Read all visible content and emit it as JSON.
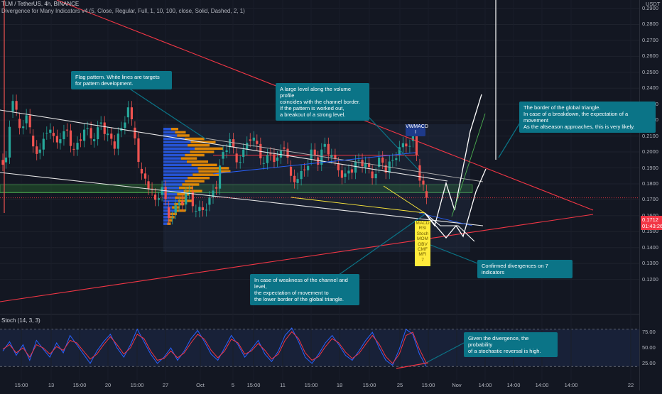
{
  "header": {
    "symbol_line": "TLM / TetherUS, 4h, BINANCE",
    "indicator_line": "Divergence for Many Indicators v4 (5, Close, Regular, Full, 1, 10, 100, close, Solid, Dashed, 2, 1)",
    "stoch_line": "Stoch (14, 3, 3)"
  },
  "currency": "USDT",
  "price": {
    "value": "0.1712",
    "timer": "01:43:26"
  },
  "notes": {
    "flag": "Flag pattern. White lines are targets\nfor pattern development.",
    "volume": "A large level along the volume profile\ncoincides with the channel border.\nIf the pattern is worked out,\na breakout of a strong level.",
    "global": "The border of the global triangle.\nIn case of a breakdown, the expectation of a movement\nAs the altseason approaches, this is very likely.",
    "weakness": "In case of weakness of the channel and level,\nthe expectation of movement to\nthe lower border of the global triangle.",
    "divergences": "Confirmed divergences on 7 indicators",
    "stoch": "Given the divergence, the probability\nof a stochastic reversal is high."
  },
  "div_labels": [
    "MACD",
    "RSI",
    "Stoch",
    "MOM",
    "OBV",
    "CMF",
    "MFI",
    "7"
  ],
  "vwmacd_label": "VWMACD",
  "vwmacd_sub": "I",
  "chart_data": [
    {
      "type": "candlestick",
      "title": "TLM / TetherUS, 4h, BINANCE",
      "y_axis_ticks": [
        "0.2900",
        "0.2800",
        "0.2700",
        "0.2600",
        "0.2500",
        "0.2400",
        "0.2300",
        "0.2200",
        "0.2100",
        "0.2000",
        "0.1900",
        "0.1800",
        "0.1700",
        "0.1600",
        "0.1500",
        "0.1400",
        "0.1300",
        "0.1200"
      ],
      "x_axis_ticks": [
        "15:00",
        "13",
        "15:00",
        "20",
        "15:00",
        "27",
        "Oct",
        "5",
        "15:00",
        "11",
        "15:00",
        "18",
        "15:00",
        "25",
        "15:00",
        "Nov",
        "14:00",
        "14:00",
        "14:00",
        "14:00",
        "22"
      ],
      "last_price": 0.1712,
      "close_path": [
        0.195,
        0.235,
        0.215,
        0.22,
        0.205,
        0.2,
        0.215,
        0.21,
        0.205,
        0.215,
        0.2,
        0.21,
        0.215,
        0.205,
        0.22,
        0.21,
        0.205,
        0.215,
        0.225,
        0.21,
        0.185,
        0.18,
        0.17,
        0.175,
        0.16,
        0.165,
        0.17,
        0.175,
        0.16,
        0.165,
        0.17,
        0.18,
        0.2,
        0.205,
        0.195,
        0.2,
        0.21,
        0.205,
        0.19,
        0.2,
        0.195,
        0.205,
        0.185,
        0.18,
        0.19,
        0.2,
        0.195,
        0.205,
        0.195,
        0.19,
        0.185,
        0.19,
        0.195,
        0.19,
        0.185,
        0.195,
        0.19,
        0.195,
        0.2,
        0.205,
        0.21,
        0.185,
        0.1712
      ],
      "levels": {
        "support_zone": [
          0.1745,
          0.1795
        ],
        "resistance_level": 0.198
      },
      "grid": true
    },
    {
      "type": "line",
      "title": "Stoch (14, 3, 3)",
      "y_axis_ticks": [
        "75.00",
        "50.00",
        "25.00"
      ],
      "ylim": [
        10,
        90
      ],
      "series": [
        {
          "color": "#2962ff",
          "values": [
            45,
            60,
            38,
            55,
            30,
            62,
            48,
            35,
            58,
            42,
            70,
            55,
            40,
            25,
            45,
            60,
            72,
            50,
            35,
            55,
            80,
            60,
            40,
            25,
            35,
            50,
            30,
            45,
            65,
            78,
            60,
            40,
            30,
            50,
            70,
            55,
            35,
            48,
            62,
            40,
            28,
            45,
            70,
            82,
            60,
            35,
            25,
            40,
            58,
            70,
            55,
            38,
            30,
            45,
            62,
            75,
            50,
            30,
            22,
            48,
            80,
            72,
            40,
            20
          ]
        },
        {
          "color": "#f23645",
          "values": [
            48,
            55,
            42,
            50,
            35,
            55,
            50,
            40,
            52,
            46,
            62,
            58,
            45,
            32,
            40,
            55,
            68,
            55,
            40,
            50,
            72,
            65,
            45,
            30,
            33,
            45,
            34,
            42,
            58,
            72,
            64,
            46,
            34,
            45,
            64,
            58,
            40,
            45,
            57,
            46,
            32,
            40,
            62,
            76,
            65,
            42,
            30,
            36,
            52,
            65,
            58,
            43,
            33,
            41,
            56,
            70,
            56,
            36,
            25,
            40,
            70,
            75,
            48,
            26
          ]
        }
      ]
    }
  ]
}
